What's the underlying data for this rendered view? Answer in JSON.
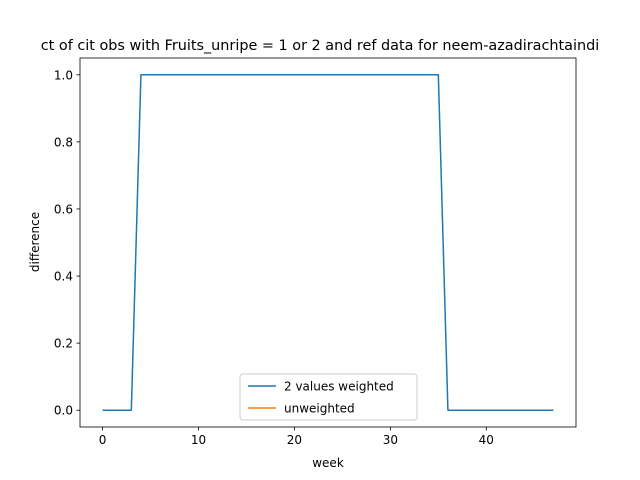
{
  "chart_data": {
    "type": "line",
    "title": "ct of cit obs with Fruits_unripe = 1 or 2 and ref data for neem-azadirachtaindi",
    "xlabel": "week",
    "ylabel": "difference",
    "xlim": [
      -2.35,
      49.35
    ],
    "ylim": [
      -0.05,
      1.05
    ],
    "xticks": [
      0,
      10,
      20,
      30,
      40
    ],
    "yticks": [
      0.0,
      0.2,
      0.4,
      0.6,
      0.8,
      1.0
    ],
    "xtick_labels": [
      "0",
      "10",
      "20",
      "30",
      "40"
    ],
    "ytick_labels": [
      "0.0",
      "0.2",
      "0.4",
      "0.6",
      "0.8",
      "1.0"
    ],
    "grid": false,
    "legend_position": "lower center",
    "series": [
      {
        "name": "2 values weighted",
        "color": "#1f77b4",
        "x": [
          0,
          1,
          2,
          3,
          4,
          5,
          6,
          7,
          8,
          9,
          10,
          11,
          12,
          13,
          14,
          15,
          16,
          17,
          18,
          19,
          20,
          21,
          22,
          23,
          24,
          25,
          26,
          27,
          28,
          29,
          30,
          31,
          32,
          33,
          34,
          35,
          36,
          37,
          38,
          39,
          40,
          41,
          42,
          43,
          44,
          45,
          46,
          47
        ],
        "y": [
          0,
          0,
          0,
          0,
          1,
          1,
          1,
          1,
          1,
          1,
          1,
          1,
          1,
          1,
          1,
          1,
          1,
          1,
          1,
          1,
          1,
          1,
          1,
          1,
          1,
          1,
          1,
          1,
          1,
          1,
          1,
          1,
          1,
          1,
          1,
          1,
          0,
          0,
          0,
          0,
          0,
          0,
          0,
          0,
          0,
          0,
          0,
          0
        ]
      },
      {
        "name": "unweighted",
        "color": "#ff7f0e",
        "x": [],
        "y": []
      }
    ]
  }
}
